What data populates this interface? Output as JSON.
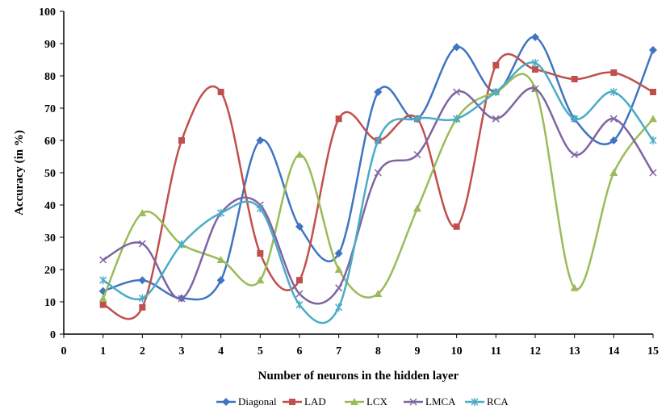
{
  "chart_data": {
    "type": "line",
    "xlabel": "Number of neurons in the hidden layer",
    "ylabel": "Accuracy (in %)",
    "xlim": [
      0,
      15
    ],
    "ylim": [
      0,
      100
    ],
    "x_ticks": [
      "0",
      "1",
      "2",
      "3",
      "4",
      "5",
      "6",
      "7",
      "8",
      "9",
      "10",
      "11",
      "12",
      "13",
      "14",
      "15"
    ],
    "y_ticks": [
      "0",
      "10",
      "20",
      "30",
      "40",
      "50",
      "60",
      "70",
      "80",
      "90",
      "100"
    ],
    "grid": false,
    "legend_position": "bottom",
    "x": [
      1,
      2,
      3,
      4,
      5,
      6,
      7,
      8,
      9,
      10,
      11,
      12,
      13,
      14,
      15
    ],
    "series": [
      {
        "name": "Diagonal",
        "color": "#3f75c0",
        "marker": "diamond",
        "values": [
          13.3,
          16.7,
          11.1,
          16.7,
          60,
          33.3,
          25,
          75,
          66.7,
          88.9,
          75,
          92,
          66.7,
          60,
          88
        ]
      },
      {
        "name": "LAD",
        "color": "#c0504d",
        "marker": "square",
        "values": [
          9.1,
          8.3,
          60,
          75,
          25,
          16.7,
          66.7,
          60,
          66.7,
          33.3,
          83.3,
          82,
          79,
          81,
          75
        ]
      },
      {
        "name": "LCX",
        "color": "#9bbb59",
        "marker": "triangle",
        "values": [
          11,
          37.5,
          27.8,
          23,
          16.7,
          55.6,
          20,
          12.5,
          38.9,
          66.7,
          75,
          76,
          14.3,
          50,
          66.7
        ]
      },
      {
        "name": "LMCA",
        "color": "#8064a2",
        "marker": "x",
        "values": [
          23,
          28,
          11,
          37.5,
          40,
          12.5,
          14.3,
          50,
          55.6,
          75,
          66.7,
          76,
          55.6,
          66.7,
          50
        ]
      },
      {
        "name": "RCA",
        "color": "#4bacc6",
        "marker": "star",
        "values": [
          16.7,
          11.1,
          27.8,
          37.5,
          38.9,
          9.1,
          8.3,
          60,
          66.7,
          66.7,
          75,
          84,
          66.7,
          75,
          60
        ]
      }
    ]
  }
}
